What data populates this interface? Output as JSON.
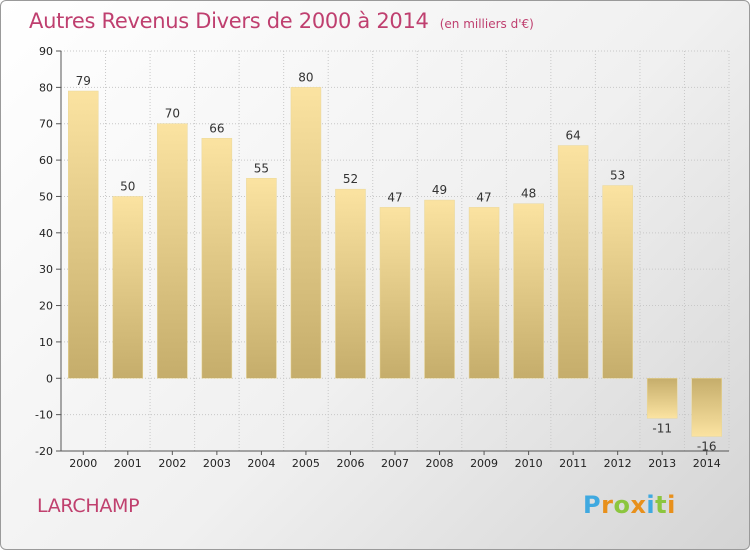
{
  "colors": {
    "title": "#bf3f6f",
    "bar_light": "#fbe3a1",
    "bar_dark": "#c5ad6b",
    "grid": "#c8c8c8"
  },
  "footer": {
    "commune": "LARCHAMP",
    "logo_letters": [
      "P",
      "r",
      "o",
      "x",
      "i",
      "t",
      "i"
    ],
    "logo_colors": [
      "#3fa9e0",
      "#e8901b",
      "#8cc63f",
      "#e8901b",
      "#3fa9e0",
      "#8cc63f",
      "#e8901b"
    ]
  },
  "chart_data": {
    "type": "bar",
    "title": "Autres Revenus Divers de 2000 à 2014",
    "subtitle": "(en milliers d'€)",
    "categories": [
      "2000",
      "2001",
      "2002",
      "2003",
      "2004",
      "2005",
      "2006",
      "2007",
      "2008",
      "2009",
      "2010",
      "2011",
      "2012",
      "2013",
      "2014"
    ],
    "values": [
      79,
      50,
      70,
      66,
      55,
      80,
      52,
      47,
      49,
      47,
      48,
      64,
      53,
      -11,
      -16
    ],
    "ylim": [
      -20,
      90
    ],
    "yticks": [
      -20,
      -10,
      0,
      10,
      20,
      30,
      40,
      50,
      60,
      70,
      80,
      90
    ],
    "xlabel": "",
    "ylabel": "",
    "grid": true,
    "legend": "none"
  }
}
